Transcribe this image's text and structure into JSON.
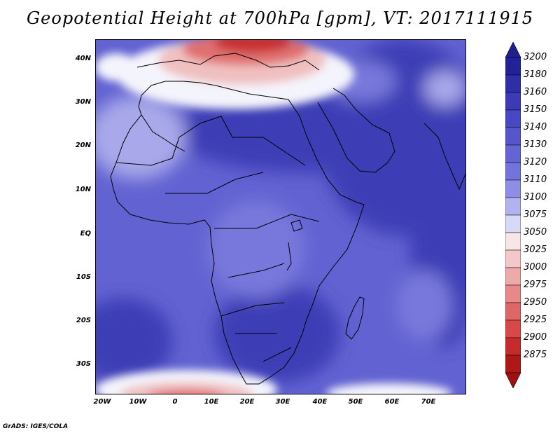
{
  "title": "Geopotential Height at 700hPa [gpm], VT: 2017111915",
  "credit": "GrADS: IGES/COLA",
  "lat_labels": [
    "40N",
    "30N",
    "20N",
    "10N",
    "EQ",
    "10S",
    "20S",
    "30S"
  ],
  "lon_labels": [
    "20W",
    "10W",
    "0",
    "10E",
    "20E",
    "30E",
    "40E",
    "50E",
    "60E",
    "70E"
  ],
  "colorbar": {
    "levels": [
      "3200",
      "3180",
      "3160",
      "3150",
      "3140",
      "3130",
      "3120",
      "3110",
      "3100",
      "3075",
      "3050",
      "3025",
      "3000",
      "2975",
      "2950",
      "2925",
      "2900",
      "2875"
    ],
    "colors": [
      "#23219a",
      "#2e2ea8",
      "#3b3bb8",
      "#4848c4",
      "#5656cc",
      "#6464d4",
      "#7373dc",
      "#8e8ee6",
      "#b2b2f0",
      "#d8d8f8",
      "#f6e6e6",
      "#f4c8c8",
      "#eeaaaa",
      "#e88888",
      "#e06666",
      "#d84848",
      "#c62a2a",
      "#b01818"
    ],
    "top_color": "#1f1f8f",
    "bottom_color": "#a01010"
  },
  "map": {
    "extent": {
      "lon_min": -22,
      "lon_max": 80,
      "lat_min": -36,
      "lat_max": 45
    },
    "field_colors": {
      "background": "#6262d2",
      "high": "#3e3eb6",
      "mid": "#7878dc",
      "light": "#a8a8ea",
      "white": "#f4f4fc",
      "pink": "#f0c0c0",
      "red": "#e07070",
      "deepred": "#c83030"
    }
  }
}
